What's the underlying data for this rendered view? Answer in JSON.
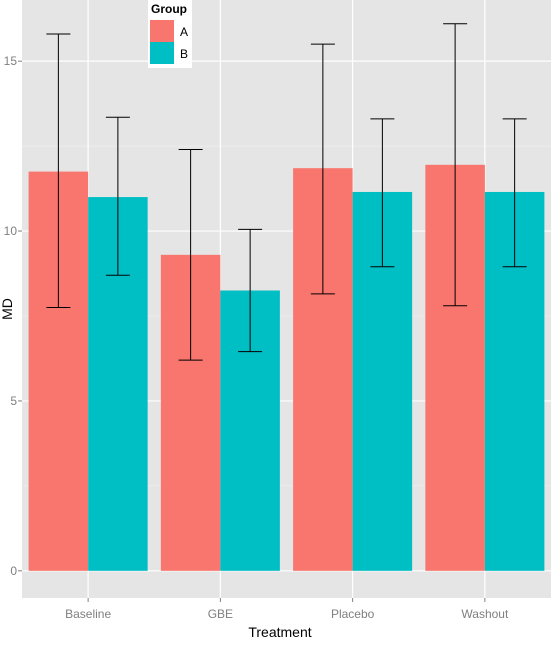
{
  "chart_data": {
    "type": "bar",
    "xlabel": "Treatment",
    "ylabel": "MD",
    "categories": [
      "Baseline",
      "GBE",
      "Placebo",
      "Washout"
    ],
    "ylim": [
      -0.8,
      16.8
    ],
    "y_ticks": [
      0,
      5,
      10,
      15
    ],
    "y_tick_labels": [
      "0",
      "5",
      "10",
      "15"
    ],
    "grid": true,
    "background": "#e5e5e5",
    "legend": {
      "title": "Group",
      "placement": "top-left",
      "entries": [
        "A",
        "B"
      ]
    },
    "series": [
      {
        "name": "A",
        "color": "#f8766d",
        "values": [
          11.75,
          9.3,
          11.85,
          11.95
        ],
        "error_low": [
          7.75,
          6.2,
          8.15,
          7.8
        ],
        "error_high": [
          15.8,
          12.4,
          15.5,
          16.1
        ]
      },
      {
        "name": "B",
        "color": "#00bfc4",
        "values": [
          11.0,
          8.25,
          11.15,
          11.15
        ],
        "error_low": [
          8.7,
          6.45,
          8.95,
          8.95
        ],
        "error_high": [
          13.35,
          10.05,
          13.3,
          13.3
        ]
      }
    ]
  }
}
